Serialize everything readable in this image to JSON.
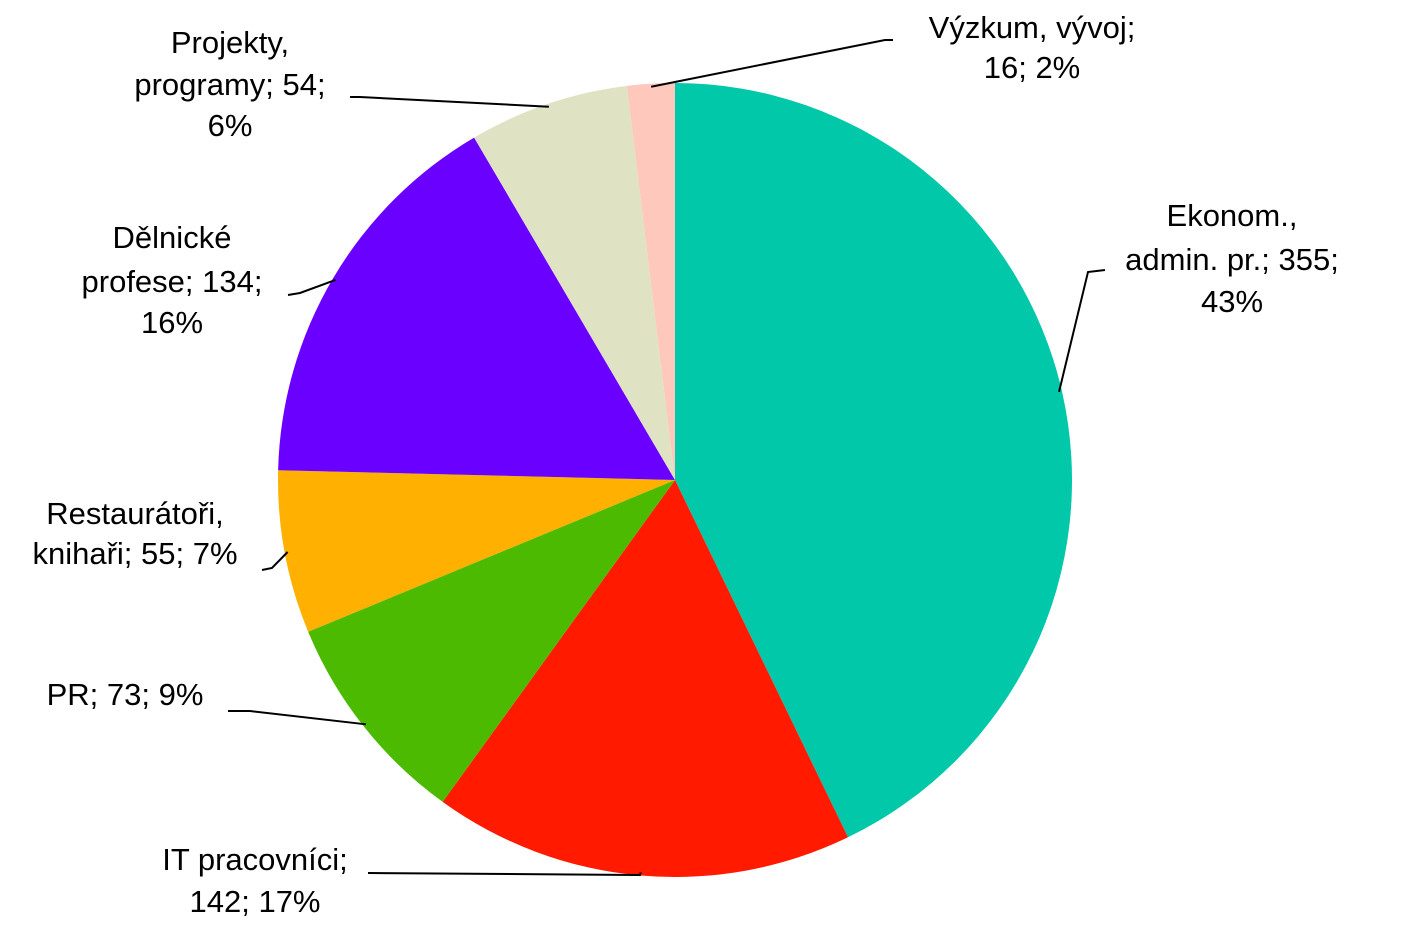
{
  "chart_data": {
    "type": "pie",
    "values": [
      355,
      142,
      73,
      55,
      134,
      54,
      16
    ],
    "value_labels": [
      [
        "Ekonom.,",
        "admin. pr.; 355;",
        "43%"
      ],
      [
        "IT pracovníci;",
        "142; 17%"
      ],
      [
        "PR; 73; 9%"
      ],
      [
        "Restaurátoři,",
        "knihaři; 55; 7%"
      ],
      [
        "Dělnické",
        "profese; 134;",
        "16%"
      ],
      [
        "Projekty,",
        "programy; 54;",
        "6%"
      ],
      [
        "Výzkum, vývoj;",
        "16; 2%"
      ]
    ],
    "colors": [
      "#00c8a8",
      "#ff1a00",
      "#4cbb00",
      "#ffb000",
      "#6a00ff",
      "#e0e2c4",
      "#ffc8bc"
    ]
  }
}
